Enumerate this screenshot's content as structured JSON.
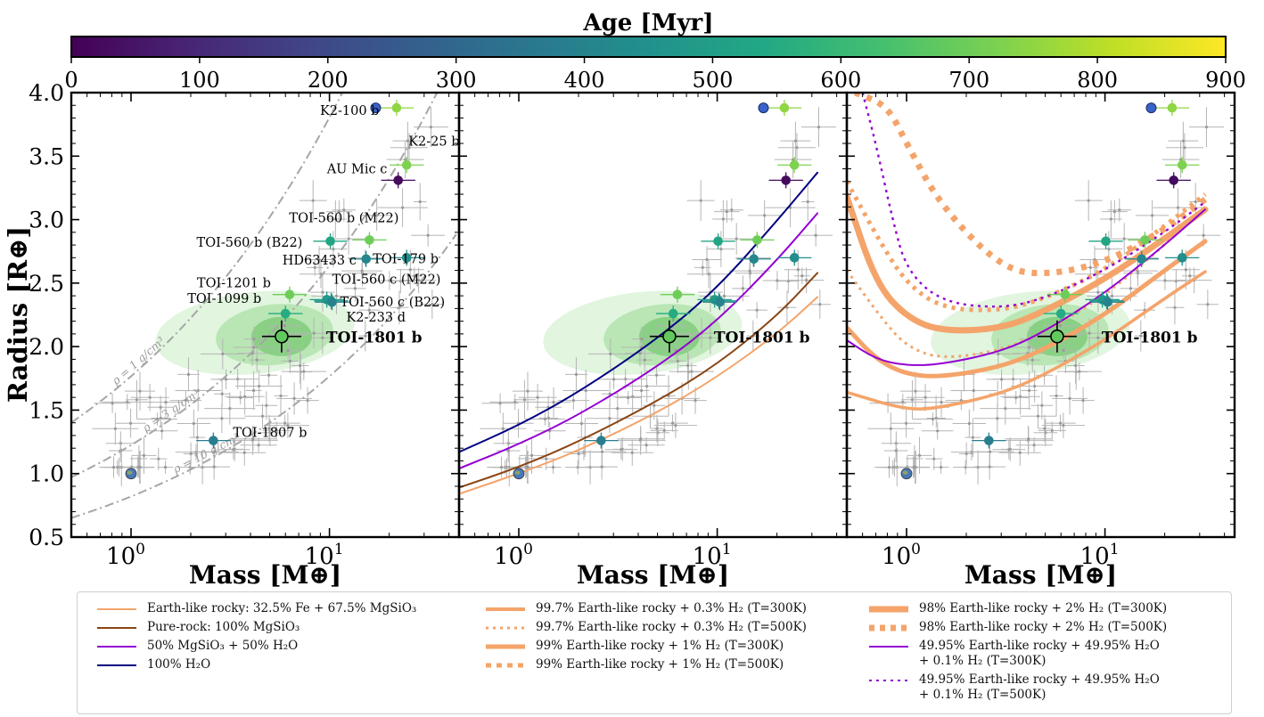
{
  "colorbar": {
    "label": "Age [Myr]",
    "ticks": [
      0,
      100,
      200,
      300,
      400,
      500,
      600,
      700,
      800,
      900
    ],
    "range": [
      0,
      900
    ],
    "colormap": "viridis"
  },
  "chart_data": [
    {
      "type": "scatter",
      "panel": 1,
      "xlabel": "Mass [M⊕]",
      "ylabel": "Radius [R⊕]",
      "xscale": "log",
      "xlim": [
        0.5,
        45
      ],
      "ylim": [
        0.5,
        4.0
      ],
      "yticks": [
        "0.5",
        "1.0",
        "1.5",
        "2.0",
        "2.5",
        "3.0",
        "3.5",
        "4.0"
      ],
      "xticks": [
        "10^0",
        "10^1"
      ],
      "planets": [
        {
          "name": "K2-100 b",
          "mass": 21.8,
          "radius": 3.88,
          "age": 750
        },
        {
          "name": "K2-25 b",
          "mass": 24.5,
          "radius": 3.43,
          "age": 725
        },
        {
          "name": "AU Mic c",
          "mass": 22.2,
          "radius": 3.31,
          "age": 22
        },
        {
          "name": "TOI-560 b (M22)",
          "mass": 15.9,
          "radius": 2.84,
          "age": 700
        },
        {
          "name": "TOI-560 b (B22)",
          "mass": 10.1,
          "radius": 2.83,
          "age": 530
        },
        {
          "name": "TOI-179 b",
          "mass": 24.5,
          "radius": 2.7,
          "age": 440
        },
        {
          "name": "HD63433 c",
          "mass": 15.3,
          "radius": 2.69,
          "age": 414
        },
        {
          "name": "TOI-1201 b",
          "mass": 6.3,
          "radius": 2.41,
          "age": 700
        },
        {
          "name": "TOI-560 c (M22)",
          "mass": 9.7,
          "radius": 2.37,
          "age": 480
        },
        {
          "name": "TOI-560 c (B22)",
          "mass": 10.2,
          "radius": 2.36,
          "age": 480
        },
        {
          "name": "TOI-1099 b",
          "mass": 6.0,
          "radius": 2.26,
          "age": 550
        },
        {
          "name": "K2-233 d",
          "mass": 10.3,
          "radius": 2.35,
          "age": 400
        },
        {
          "name": "TOI-1807 b",
          "mass": 2.6,
          "radius": 1.26,
          "age": 380
        },
        {
          "name": "TOI-1801 b",
          "mass": 5.74,
          "radius": 2.08,
          "age": 680
        },
        {
          "name": "Earth",
          "mass": 1.0,
          "radius": 1.0
        }
      ],
      "density_curves": [
        {
          "label": "ρ = 1 g/cm³",
          "density": 1
        },
        {
          "label": "ρ = 3 g/cm³",
          "density": 3
        },
        {
          "label": "ρ = 10 g/cm³",
          "density": 10
        }
      ],
      "highlight": {
        "name": "TOI-1801 b",
        "mass": 5.74,
        "radius": 2.08
      }
    },
    {
      "type": "scatter",
      "panel": 2,
      "xlabel": "Mass [M⊕]",
      "xscale": "log",
      "xlim": [
        0.5,
        45
      ],
      "ylim": [
        0.5,
        4.0
      ],
      "xticks": [
        "10^0",
        "10^1"
      ],
      "highlight": {
        "name": "TOI-1801 b"
      },
      "models": [
        {
          "name": "Earth-like rocky: 32.5% Fe + 67.5% MgSiO₃",
          "color": "#f4a46a",
          "x": [
            0.5,
            1,
            2,
            5,
            10,
            20,
            32
          ],
          "y": [
            0.84,
            1.0,
            1.18,
            1.48,
            1.76,
            2.1,
            2.39
          ]
        },
        {
          "name": "Pure-rock: 100% MgSiO₃",
          "color": "#8b4513",
          "x": [
            0.5,
            1,
            2,
            5,
            10,
            20,
            32
          ],
          "y": [
            0.89,
            1.05,
            1.25,
            1.57,
            1.86,
            2.24,
            2.58
          ]
        },
        {
          "name": "50% MgSiO₃ + 50% H₂O",
          "color": "#9400d3",
          "x": [
            0.5,
            1,
            2,
            5,
            10,
            20,
            32
          ],
          "y": [
            1.04,
            1.23,
            1.46,
            1.84,
            2.2,
            2.68,
            3.05
          ]
        },
        {
          "name": "100% H₂O",
          "color": "#000080",
          "x": [
            0.5,
            1,
            2,
            5,
            10,
            20,
            32
          ],
          "y": [
            1.17,
            1.38,
            1.64,
            2.06,
            2.46,
            2.99,
            3.37
          ]
        }
      ]
    },
    {
      "type": "scatter",
      "panel": 3,
      "xlabel": "Mass [M⊕]",
      "xscale": "log",
      "xlim": [
        0.5,
        45
      ],
      "ylim": [
        0.5,
        4.0
      ],
      "xticks": [
        "10^0",
        "10^1"
      ],
      "highlight": {
        "name": "TOI-1801 b"
      },
      "models": [
        {
          "name": "99.7% Earth-like rocky + 0.3% H₂ (T=300K)",
          "color": "#f4a46a",
          "style": "solid-thick",
          "x": [
            0.5,
            1,
            1.5,
            3,
            5,
            10,
            20,
            32
          ],
          "y": [
            1.64,
            1.5,
            1.52,
            1.63,
            1.78,
            2.05,
            2.38,
            2.59
          ]
        },
        {
          "name": "99.7% Earth-like rocky + 0.3% H₂ (T=500K)",
          "color": "#f4a46a",
          "style": "dotted",
          "x": [
            0.5,
            0.75,
            1,
            1.5,
            3,
            5,
            10,
            20,
            32
          ],
          "y": [
            2.6,
            2.22,
            2.0,
            1.9,
            1.97,
            2.12,
            2.4,
            2.8,
            3.1
          ]
        },
        {
          "name": "99% Earth-like rocky + 1% H₂ (T=300K)",
          "color": "#f4a46a",
          "style": "solid-thicker",
          "x": [
            0.5,
            0.7,
            1,
            1.5,
            3,
            5,
            10,
            20,
            32
          ],
          "y": [
            2.15,
            1.9,
            1.78,
            1.76,
            1.84,
            1.98,
            2.25,
            2.6,
            2.83
          ]
        },
        {
          "name": "99% Earth-like rocky + 1% H₂ (T=500K)",
          "color": "#f4a46a",
          "style": "dotted-thick",
          "x": [
            0.5,
            0.75,
            1,
            1.5,
            3,
            5,
            10,
            20,
            32
          ],
          "y": [
            3.3,
            2.8,
            2.5,
            2.3,
            2.28,
            2.38,
            2.6,
            2.95,
            3.2
          ]
        },
        {
          "name": "98% Earth-like rocky + 2% H₂ (T=300K)",
          "color": "#f4a46a",
          "style": "solid-thickest",
          "x": [
            0.5,
            0.7,
            1,
            1.5,
            3,
            5,
            10,
            20,
            32
          ],
          "y": [
            3.18,
            2.5,
            2.23,
            2.12,
            2.14,
            2.28,
            2.53,
            2.85,
            3.08
          ]
        },
        {
          "name": "98% Earth-like rocky + 2% H₂ (T=500K)",
          "color": "#f4a46a",
          "style": "dotted-thickest",
          "x": [
            0.55,
            0.8,
            1,
            1.5,
            3,
            5,
            10,
            20,
            32
          ],
          "y": [
            4.0,
            3.9,
            3.6,
            3.1,
            2.62,
            2.56,
            2.66,
            2.92,
            3.16
          ]
        },
        {
          "name": "49.95% Earth-like rocky + 49.95% H₂O + 0.1% H₂ (T=300K)",
          "color": "#9400d3",
          "style": "solid",
          "x": [
            0.5,
            0.7,
            1,
            1.5,
            3,
            5,
            10,
            20,
            32
          ],
          "y": [
            2.05,
            1.9,
            1.85,
            1.86,
            1.96,
            2.12,
            2.42,
            2.8,
            3.08
          ]
        },
        {
          "name": "49.95% Earth-like rocky + 49.95% H₂O + 0.1% H₂ (T=500K)",
          "color": "#9400d3",
          "style": "dotted",
          "x": [
            0.6,
            0.7,
            0.85,
            1,
            1.5,
            3,
            5,
            10,
            20,
            32
          ],
          "y": [
            4.0,
            3.6,
            3.0,
            2.6,
            2.35,
            2.3,
            2.38,
            2.6,
            2.9,
            3.14
          ]
        }
      ]
    }
  ],
  "legend": {
    "col1": [
      {
        "label": "Earth-like rocky: 32.5% Fe + 67.5% MgSiO₃",
        "color": "#f4a46a",
        "style": "solid",
        "width": 2
      },
      {
        "label": "Pure-rock: 100% MgSiO₃",
        "color": "#8b4513",
        "style": "solid",
        "width": 2
      },
      {
        "label": "50% MgSiO₃ + 50% H₂O",
        "color": "#9400d3",
        "style": "solid",
        "width": 2
      },
      {
        "label": "100% H₂O",
        "color": "#000080",
        "style": "solid",
        "width": 2
      }
    ],
    "col2": [
      {
        "label": "99.7% Earth-like rocky + 0.3% H₂ (T=300K)",
        "color": "#f4a46a",
        "style": "solid",
        "width": 4
      },
      {
        "label": "99.7% Earth-like rocky + 0.3% H₂ (T=500K)",
        "color": "#f4a46a",
        "style": "dotted",
        "width": 3
      },
      {
        "label": "99% Earth-like rocky + 1% H₂ (T=300K)",
        "color": "#f4a46a",
        "style": "solid",
        "width": 5
      },
      {
        "label": "99% Earth-like rocky + 1% H₂ (T=500K)",
        "color": "#f4a46a",
        "style": "dotted",
        "width": 5
      }
    ],
    "col3": [
      {
        "label": "98% Earth-like rocky + 2% H₂ (T=300K)",
        "color": "#f4a46a",
        "style": "solid",
        "width": 7
      },
      {
        "label": "98% Earth-like rocky + 2% H₂ (T=500K)",
        "color": "#f4a46a",
        "style": "dotted",
        "width": 7
      },
      {
        "label": "49.95% Earth-like rocky + 49.95% H₂O\n+ 0.1% H₂ (T=300K)",
        "color": "#9400d3",
        "style": "solid",
        "width": 2
      },
      {
        "label": "49.95% Earth-like rocky + 49.95% H₂O\n+ 0.1% H₂ (T=500K)",
        "color": "#9400d3",
        "style": "dotted",
        "width": 2
      }
    ]
  }
}
